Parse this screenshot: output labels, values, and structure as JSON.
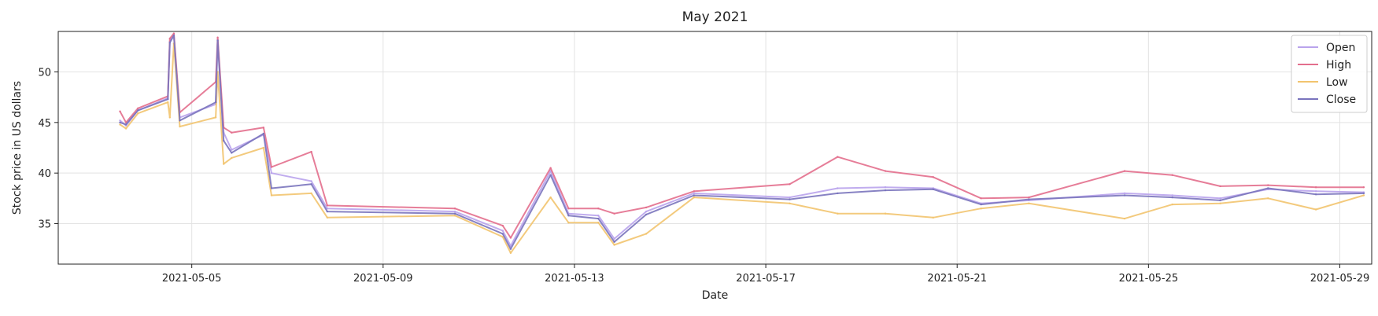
{
  "chart_data": {
    "type": "line",
    "title": "May 2021",
    "xlabel": "Date",
    "ylabel": "Stock price in US dollars",
    "xlim": [
      "2021-05-02T05:00",
      "2021-05-29T16:00"
    ],
    "ylim": [
      31,
      54
    ],
    "x_ticks": [
      "2021-05-05",
      "2021-05-09",
      "2021-05-13",
      "2021-05-17",
      "2021-05-21",
      "2021-05-25",
      "2021-05-29"
    ],
    "y_ticks": [
      35,
      40,
      45,
      50
    ],
    "grid": true,
    "legend_position": "top-right",
    "series": [
      {
        "name": "Open",
        "color": "#b9a3ec",
        "points": [
          [
            "2021-05-03T12:00",
            45.2
          ],
          [
            "2021-05-03T15:00",
            44.7
          ],
          [
            "2021-05-03T21:00",
            46.2
          ],
          [
            "2021-05-04T12:00",
            47.4
          ],
          [
            "2021-05-04T13:00",
            53.0
          ],
          [
            "2021-05-04T15:00",
            53.7
          ],
          [
            "2021-05-04T18:00",
            45.5
          ],
          [
            "2021-05-05T12:00",
            46.8
          ],
          [
            "2021-05-05T13:00",
            53.2
          ],
          [
            "2021-05-05T16:00",
            44.0
          ],
          [
            "2021-05-05T20:00",
            42.3
          ],
          [
            "2021-05-06T12:00",
            43.8
          ],
          [
            "2021-05-06T16:00",
            40.0
          ],
          [
            "2021-05-07T12:00",
            39.2
          ],
          [
            "2021-05-07T20:00",
            36.5
          ],
          [
            "2021-05-10T12:00",
            36.2
          ],
          [
            "2021-05-11T12:00",
            34.3
          ],
          [
            "2021-05-11T16:00",
            32.8
          ],
          [
            "2021-05-12T12:00",
            40.2
          ],
          [
            "2021-05-12T21:00",
            36.0
          ],
          [
            "2021-05-13T12:00",
            35.8
          ],
          [
            "2021-05-13T20:00",
            33.5
          ],
          [
            "2021-05-14T12:00",
            36.2
          ],
          [
            "2021-05-15T12:00",
            38.0
          ],
          [
            "2021-05-17T12:00",
            37.6
          ],
          [
            "2021-05-18T12:00",
            38.5
          ],
          [
            "2021-05-19T12:00",
            38.6
          ],
          [
            "2021-05-20T12:00",
            38.5
          ],
          [
            "2021-05-21T12:00",
            37.0
          ],
          [
            "2021-05-22T12:00",
            37.3
          ],
          [
            "2021-05-24T12:00",
            38.0
          ],
          [
            "2021-05-25T12:00",
            37.8
          ],
          [
            "2021-05-26T12:00",
            37.5
          ],
          [
            "2021-05-27T12:00",
            38.4
          ],
          [
            "2021-05-28T12:00",
            38.2
          ],
          [
            "2021-05-29T12:00",
            38.1
          ]
        ]
      },
      {
        "name": "High",
        "color": "#e36f8d",
        "points": [
          [
            "2021-05-03T12:00",
            46.1
          ],
          [
            "2021-05-03T15:00",
            45.0
          ],
          [
            "2021-05-03T21:00",
            46.4
          ],
          [
            "2021-05-04T12:00",
            47.6
          ],
          [
            "2021-05-04T13:00",
            53.3
          ],
          [
            "2021-05-04T15:00",
            53.8
          ],
          [
            "2021-05-04T18:00",
            46.0
          ],
          [
            "2021-05-05T12:00",
            49.0
          ],
          [
            "2021-05-05T13:00",
            53.4
          ],
          [
            "2021-05-05T16:00",
            44.5
          ],
          [
            "2021-05-05T20:00",
            44.0
          ],
          [
            "2021-05-06T12:00",
            44.5
          ],
          [
            "2021-05-06T16:00",
            40.6
          ],
          [
            "2021-05-07T12:00",
            42.1
          ],
          [
            "2021-05-07T20:00",
            36.8
          ],
          [
            "2021-05-10T12:00",
            36.5
          ],
          [
            "2021-05-11T12:00",
            34.8
          ],
          [
            "2021-05-11T16:00",
            33.6
          ],
          [
            "2021-05-12T12:00",
            40.5
          ],
          [
            "2021-05-12T21:00",
            36.5
          ],
          [
            "2021-05-13T12:00",
            36.5
          ],
          [
            "2021-05-13T20:00",
            36.0
          ],
          [
            "2021-05-14T12:00",
            36.6
          ],
          [
            "2021-05-15T12:00",
            38.2
          ],
          [
            "2021-05-17T12:00",
            38.9
          ],
          [
            "2021-05-18T12:00",
            41.6
          ],
          [
            "2021-05-19T12:00",
            40.2
          ],
          [
            "2021-05-20T12:00",
            39.6
          ],
          [
            "2021-05-21T12:00",
            37.5
          ],
          [
            "2021-05-22T12:00",
            37.6
          ],
          [
            "2021-05-24T12:00",
            40.2
          ],
          [
            "2021-05-25T12:00",
            39.8
          ],
          [
            "2021-05-26T12:00",
            38.7
          ],
          [
            "2021-05-27T12:00",
            38.8
          ],
          [
            "2021-05-28T12:00",
            38.6
          ],
          [
            "2021-05-29T12:00",
            38.6
          ]
        ]
      },
      {
        "name": "Low",
        "color": "#f2c46f",
        "points": [
          [
            "2021-05-03T12:00",
            44.8
          ],
          [
            "2021-05-03T15:00",
            44.4
          ],
          [
            "2021-05-03T21:00",
            45.9
          ],
          [
            "2021-05-04T12:00",
            47.0
          ],
          [
            "2021-05-04T13:00",
            45.5
          ],
          [
            "2021-05-04T15:00",
            52.8
          ],
          [
            "2021-05-04T18:00",
            44.6
          ],
          [
            "2021-05-05T12:00",
            45.5
          ],
          [
            "2021-05-05T13:00",
            50.0
          ],
          [
            "2021-05-05T16:00",
            40.9
          ],
          [
            "2021-05-05T20:00",
            41.5
          ],
          [
            "2021-05-06T12:00",
            42.5
          ],
          [
            "2021-05-06T16:00",
            37.8
          ],
          [
            "2021-05-07T12:00",
            38.0
          ],
          [
            "2021-05-07T20:00",
            35.6
          ],
          [
            "2021-05-10T12:00",
            35.8
          ],
          [
            "2021-05-11T12:00",
            33.7
          ],
          [
            "2021-05-11T16:00",
            32.1
          ],
          [
            "2021-05-12T12:00",
            37.6
          ],
          [
            "2021-05-12T21:00",
            35.1
          ],
          [
            "2021-05-13T12:00",
            35.1
          ],
          [
            "2021-05-13T20:00",
            32.9
          ],
          [
            "2021-05-14T12:00",
            34.0
          ],
          [
            "2021-05-15T12:00",
            37.6
          ],
          [
            "2021-05-17T12:00",
            37.0
          ],
          [
            "2021-05-18T12:00",
            36.0
          ],
          [
            "2021-05-19T12:00",
            36.0
          ],
          [
            "2021-05-20T12:00",
            35.6
          ],
          [
            "2021-05-21T12:00",
            36.5
          ],
          [
            "2021-05-22T12:00",
            37.0
          ],
          [
            "2021-05-24T12:00",
            35.5
          ],
          [
            "2021-05-25T12:00",
            36.9
          ],
          [
            "2021-05-26T12:00",
            37.0
          ],
          [
            "2021-05-27T12:00",
            37.5
          ],
          [
            "2021-05-28T12:00",
            36.4
          ],
          [
            "2021-05-29T12:00",
            37.8
          ]
        ]
      },
      {
        "name": "Close",
        "color": "#7a74bd",
        "points": [
          [
            "2021-05-03T12:00",
            45.0
          ],
          [
            "2021-05-03T15:00",
            44.8
          ],
          [
            "2021-05-03T21:00",
            46.2
          ],
          [
            "2021-05-04T12:00",
            47.3
          ],
          [
            "2021-05-04T13:00",
            52.9
          ],
          [
            "2021-05-04T15:00",
            53.6
          ],
          [
            "2021-05-04T18:00",
            45.2
          ],
          [
            "2021-05-05T12:00",
            47.0
          ],
          [
            "2021-05-05T13:00",
            53.1
          ],
          [
            "2021-05-05T16:00",
            43.2
          ],
          [
            "2021-05-05T20:00",
            42.0
          ],
          [
            "2021-05-06T12:00",
            43.9
          ],
          [
            "2021-05-06T16:00",
            38.5
          ],
          [
            "2021-05-07T12:00",
            38.9
          ],
          [
            "2021-05-07T20:00",
            36.2
          ],
          [
            "2021-05-10T12:00",
            36.0
          ],
          [
            "2021-05-11T12:00",
            34.0
          ],
          [
            "2021-05-11T16:00",
            32.5
          ],
          [
            "2021-05-12T12:00",
            39.8
          ],
          [
            "2021-05-12T21:00",
            35.8
          ],
          [
            "2021-05-13T12:00",
            35.5
          ],
          [
            "2021-05-13T20:00",
            33.2
          ],
          [
            "2021-05-14T12:00",
            35.9
          ],
          [
            "2021-05-15T12:00",
            37.8
          ],
          [
            "2021-05-17T12:00",
            37.4
          ],
          [
            "2021-05-18T12:00",
            38.0
          ],
          [
            "2021-05-19T12:00",
            38.3
          ],
          [
            "2021-05-20T12:00",
            38.4
          ],
          [
            "2021-05-21T12:00",
            36.9
          ],
          [
            "2021-05-22T12:00",
            37.4
          ],
          [
            "2021-05-24T12:00",
            37.8
          ],
          [
            "2021-05-25T12:00",
            37.6
          ],
          [
            "2021-05-26T12:00",
            37.3
          ],
          [
            "2021-05-27T12:00",
            38.5
          ],
          [
            "2021-05-28T12:00",
            37.9
          ],
          [
            "2021-05-29T12:00",
            38.0
          ]
        ]
      }
    ]
  }
}
